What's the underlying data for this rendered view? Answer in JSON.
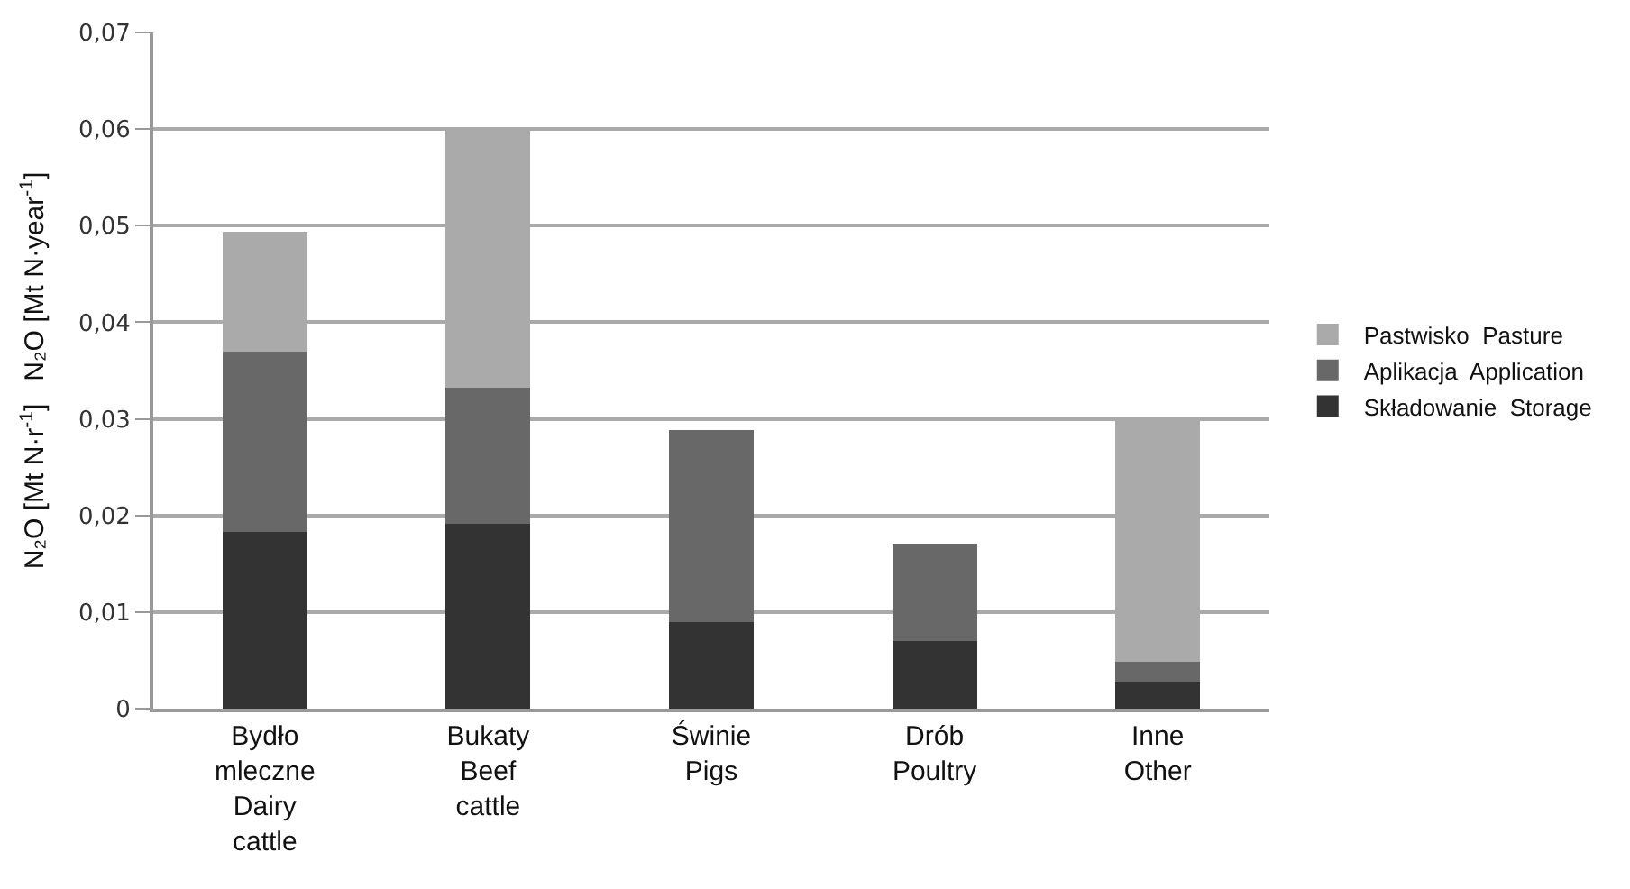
{
  "chart_data": {
    "type": "bar",
    "stacked": true,
    "ylabel": "N₂O [Mt N·r$^{-1}$]   N₂O [Mt N·year$^{-1}$]",
    "categories": [
      "Bydło\nmleczne\nDairy\ncattle",
      "Bukaty\nBeef\ncattle",
      "Świnie\nPigs",
      "Drób\nPoultry",
      "Inne\nOther"
    ],
    "series": [
      {
        "name": "Składowanie  Storage",
        "color": "#333333",
        "values": [
          0.0183,
          0.0191,
          0.009,
          0.007,
          0.0028
        ]
      },
      {
        "name": "Aplikacja  Application",
        "color": "#686868",
        "values": [
          0.0187,
          0.0141,
          0.0198,
          0.0101,
          0.0021
        ]
      },
      {
        "name": "Pastwisko  Pasture",
        "color": "#aaaaaa",
        "values": [
          0.0124,
          0.0268,
          0,
          0,
          0.0252
        ]
      }
    ],
    "ylim": [
      0,
      0.07
    ],
    "yticks": [
      {
        "value": 0,
        "label": "0"
      },
      {
        "value": 0.01,
        "label": "0,01"
      },
      {
        "value": 0.02,
        "label": "0,02"
      },
      {
        "value": 0.03,
        "label": "0,03"
      },
      {
        "value": 0.04,
        "label": "0,04"
      },
      {
        "value": 0.05,
        "label": "0,05"
      },
      {
        "value": 0.06,
        "label": "0,06"
      },
      {
        "value": 0.07,
        "label": "0,07"
      }
    ],
    "grid": "y",
    "legend": "right"
  }
}
